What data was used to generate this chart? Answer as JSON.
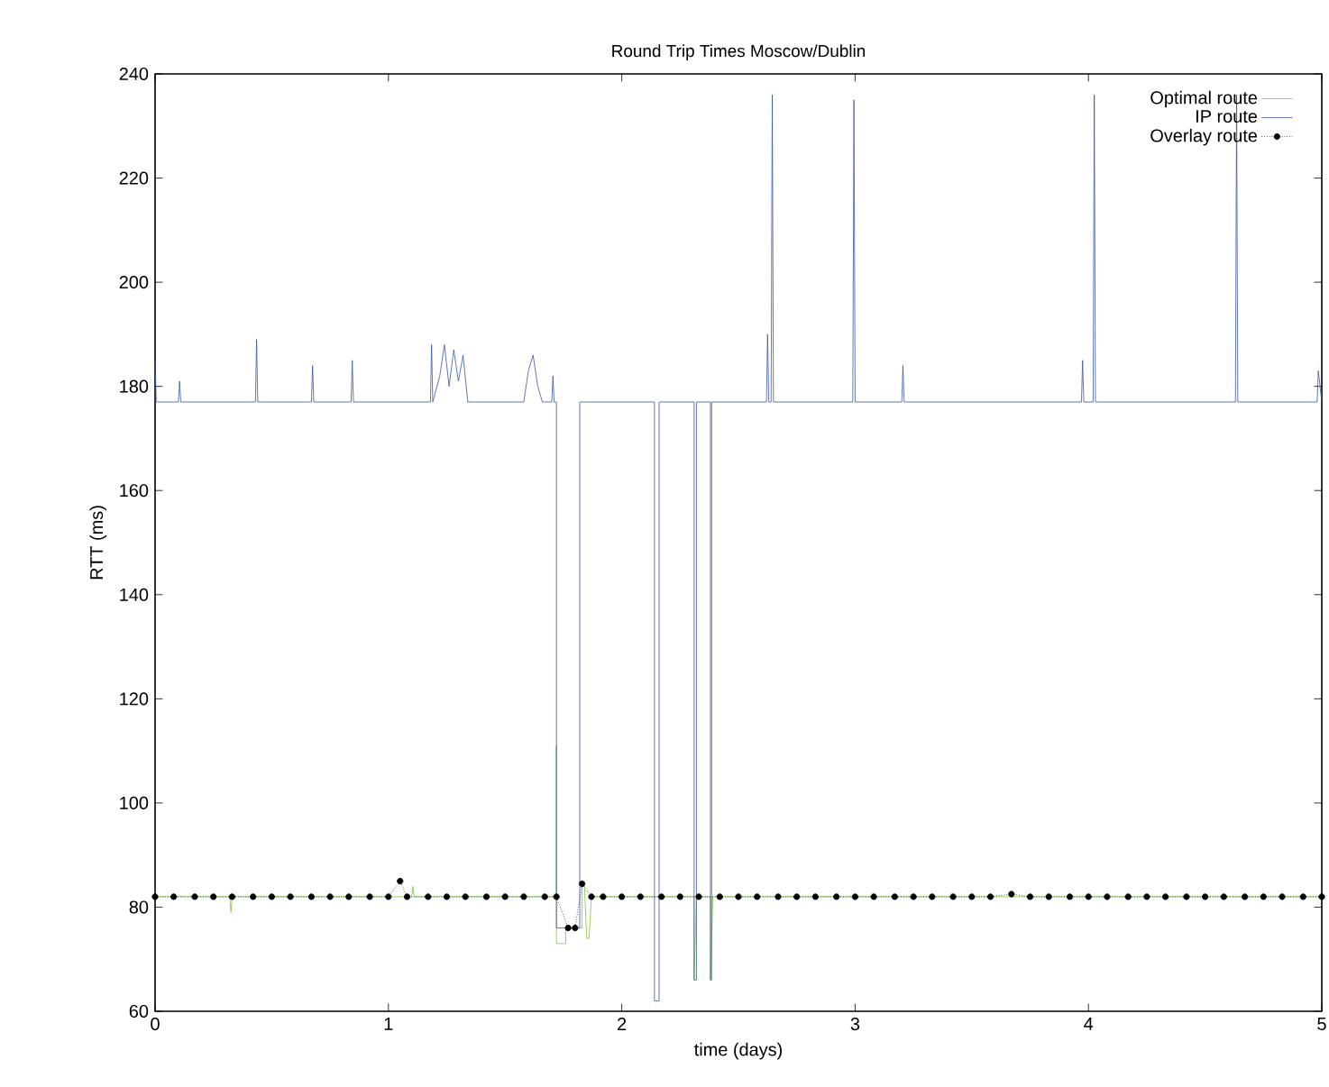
{
  "chart_data": {
    "type": "line",
    "title": "Round Trip Times Moscow/Dublin",
    "xlabel": "time (days)",
    "ylabel": "RTT (ms)",
    "xlim": [
      0,
      5
    ],
    "ylim": [
      60,
      240
    ],
    "xticks": [
      0,
      1,
      2,
      3,
      4,
      5
    ],
    "yticks": [
      60,
      80,
      100,
      120,
      140,
      160,
      180,
      200,
      220,
      240
    ],
    "grid": false,
    "legend": "top right",
    "series": [
      {
        "name": "Optimal route",
        "color": "#7ec83a",
        "marker": "none",
        "line_style": "solid",
        "x": [
          0,
          0.32,
          0.325,
          0.33,
          1.1,
          1.105,
          1.11,
          1.72,
          1.72,
          1.72,
          1.76,
          1.76,
          1.83,
          1.83,
          1.84,
          1.85,
          1.86,
          1.87,
          2.31,
          2.31,
          2.32,
          2.38,
          2.38,
          2.39,
          5
        ],
        "values": [
          82,
          82,
          79,
          82,
          82,
          84,
          82,
          82,
          111,
          73,
          73,
          76,
          76,
          84,
          84,
          74,
          74,
          82,
          82,
          66,
          82,
          82,
          66,
          82,
          82
        ]
      },
      {
        "name": "IP route",
        "color": "#3a56a8",
        "marker": "none",
        "line_style": "solid",
        "x": [
          0,
          0.005,
          0.1,
          0.105,
          0.11,
          0.43,
          0.435,
          0.44,
          0.67,
          0.675,
          0.68,
          0.84,
          0.845,
          0.85,
          1.18,
          1.185,
          1.19,
          1.22,
          1.24,
          1.26,
          1.28,
          1.3,
          1.32,
          1.34,
          1.58,
          1.6,
          1.62,
          1.64,
          1.66,
          1.7,
          1.705,
          1.71,
          1.72,
          1.72,
          1.82,
          1.82,
          2.14,
          2.14,
          2.16,
          2.16,
          2.31,
          2.31,
          2.32,
          2.32,
          2.38,
          2.38,
          2.385,
          2.385,
          2.62,
          2.625,
          2.63,
          2.64,
          2.645,
          2.65,
          2.99,
          2.995,
          3.0,
          3.2,
          3.205,
          3.21,
          3.97,
          3.975,
          3.98,
          4.02,
          4.025,
          4.03,
          4.63,
          4.635,
          4.64,
          4.98,
          4.985,
          5
        ],
        "values": [
          185,
          177,
          177,
          181,
          177,
          177,
          189,
          177,
          177,
          184,
          177,
          177,
          185,
          177,
          177,
          188,
          177,
          182,
          188,
          180,
          187,
          181,
          186,
          177,
          177,
          183,
          186,
          180,
          177,
          177,
          182,
          177,
          177,
          76,
          76,
          177,
          177,
          62,
          62,
          177,
          177,
          66,
          66,
          177,
          177,
          66,
          66,
          177,
          177,
          190,
          177,
          177,
          236,
          177,
          177,
          235,
          177,
          177,
          184,
          177,
          177,
          185,
          177,
          177,
          236,
          177,
          177,
          236,
          177,
          177,
          183,
          177
        ]
      },
      {
        "name": "Overlay route",
        "color": "#000000",
        "marker": "circle",
        "line_style": "dotted",
        "x": [
          0,
          0.08,
          0.17,
          0.25,
          0.33,
          0.42,
          0.5,
          0.58,
          0.67,
          0.75,
          0.83,
          0.92,
          1.0,
          1.05,
          1.08,
          1.17,
          1.25,
          1.33,
          1.42,
          1.5,
          1.58,
          1.67,
          1.72,
          1.77,
          1.8,
          1.83,
          1.87,
          1.92,
          2.0,
          2.08,
          2.17,
          2.25,
          2.33,
          2.42,
          2.5,
          2.58,
          2.67,
          2.75,
          2.83,
          2.92,
          3.0,
          3.08,
          3.17,
          3.25,
          3.33,
          3.42,
          3.5,
          3.58,
          3.67,
          3.75,
          3.83,
          3.92,
          4.0,
          4.08,
          4.17,
          4.25,
          4.33,
          4.42,
          4.5,
          4.58,
          4.67,
          4.75,
          4.83,
          4.92,
          5.0
        ],
        "values": [
          82,
          82,
          82,
          82,
          82,
          82,
          82,
          82,
          82,
          82,
          82,
          82,
          82,
          85,
          82,
          82,
          82,
          82,
          82,
          82,
          82,
          82,
          82,
          76,
          76,
          84.5,
          82,
          82,
          82,
          82,
          82,
          82,
          82,
          82,
          82,
          82,
          82,
          82,
          82,
          82,
          82,
          82,
          82,
          82,
          82,
          82,
          82,
          82,
          82.5,
          82,
          82,
          82,
          82,
          82,
          82,
          82,
          82,
          82,
          82,
          82,
          82,
          82,
          82,
          82,
          82
        ]
      }
    ]
  }
}
